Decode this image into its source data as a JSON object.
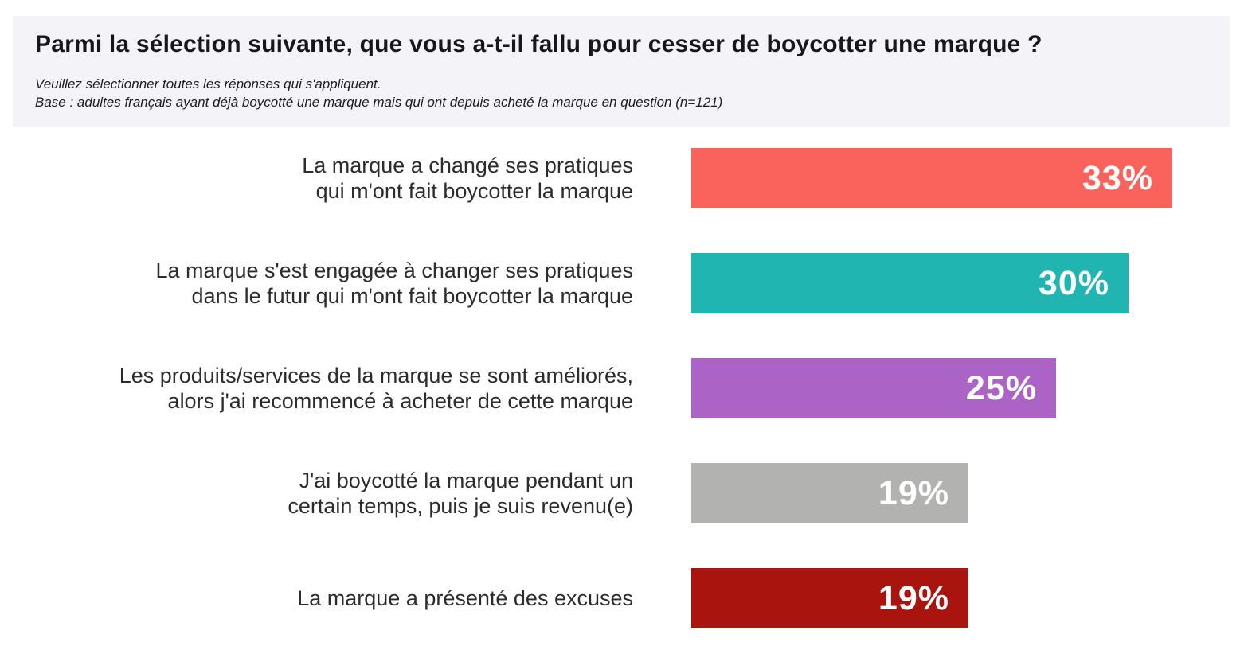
{
  "header": {
    "title": "Parmi la sélection suivante, que vous a-t-il fallu pour cesser de boycotter une marque ?",
    "subtitle_line1": "Veuillez sélectionner toutes les réponses qui s'appliquent.",
    "subtitle_line2": "Base : adultes français ayant déjà boycotté une marque mais qui ont depuis acheté la marque en question (n=121)",
    "background_color": "#f4f4f8",
    "title_color": "#17171b"
  },
  "chart_data": {
    "type": "bar",
    "orientation": "horizontal",
    "title": "Parmi la sélection suivante, que vous a-t-il fallu pour cesser de boycotter une marque ?",
    "categories": [
      "La marque a changé ses pratiques qui m'ont fait boycotter la marque",
      "La marque s'est engagée à changer ses pratiques dans le futur qui m'ont fait boycotter la marque",
      "Les produits/services de la marque se sont améliorés, alors j'ai recommencé à acheter de cette marque",
      "J'ai boycotté la marque pendant un certain temps, puis je suis revenu(e)",
      "La marque a présenté des excuses"
    ],
    "values": [
      33,
      30,
      25,
      19,
      19
    ],
    "unit": "%",
    "xlim": [
      0,
      33
    ],
    "grid": false,
    "legend": false,
    "value_label_position": "inside-end",
    "bars": [
      {
        "label_lines": [
          "La marque a changé ses pratiques",
          "qui m'ont fait boycotter la marque"
        ],
        "value": 33,
        "value_label": "33%",
        "color": "#fa625c"
      },
      {
        "label_lines": [
          "La marque s'est engagée à changer ses pratiques",
          "dans le futur qui m'ont fait boycotter la marque"
        ],
        "value": 30,
        "value_label": "30%",
        "color": "#20b5b1"
      },
      {
        "label_lines": [
          "Les produits/services de la marque se sont améliorés,",
          "alors j'ai recommencé à acheter de cette marque"
        ],
        "value": 25,
        "value_label": "25%",
        "color": "#ab63c5"
      },
      {
        "label_lines": [
          "J'ai boycotté la marque pendant un",
          "certain temps, puis je suis revenu(e)"
        ],
        "value": 19,
        "value_label": "19%",
        "color": "#b2b3b1"
      },
      {
        "label_lines": [
          "La marque a présenté des excuses"
        ],
        "value": 19,
        "value_label": "19%",
        "color": "#a9140f"
      }
    ]
  }
}
